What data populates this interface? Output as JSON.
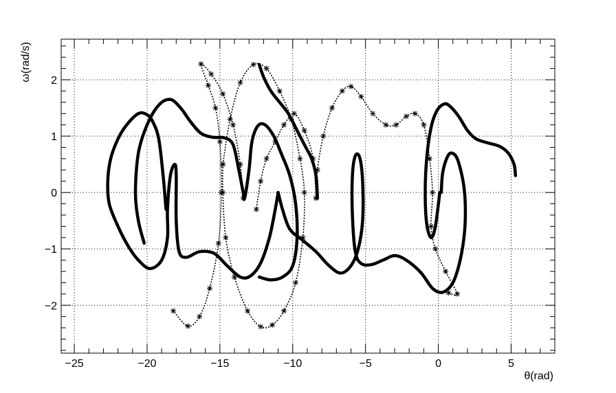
{
  "chart_data": {
    "type": "scatter",
    "title": "",
    "xlabel": "θ(rad)",
    "ylabel": "ω(rad/s)",
    "xlim": [
      -25.9,
      8.0
    ],
    "ylim": [
      -2.85,
      2.72
    ],
    "grid": true,
    "legend": "none",
    "marker": "asterisk",
    "marker_color": "#000000",
    "x_ticks": [
      {
        "value": -25,
        "label": "−25"
      },
      {
        "value": -20,
        "label": "−20"
      },
      {
        "value": -15,
        "label": "−15"
      },
      {
        "value": -10,
        "label": "−10"
      },
      {
        "value": -5,
        "label": "−5"
      },
      {
        "value": 0,
        "label": "0"
      },
      {
        "value": 5,
        "label": "5"
      }
    ],
    "y_ticks": [
      {
        "value": -2,
        "label": "−2"
      },
      {
        "value": -1,
        "label": "−1"
      },
      {
        "value": 0,
        "label": "0"
      },
      {
        "value": 1,
        "label": "1"
      },
      {
        "value": 2,
        "label": "2"
      }
    ],
    "series": [
      {
        "style": "dense",
        "points": [
          [
            5.3,
            0.3
          ],
          [
            5.2,
            0.5
          ],
          [
            4.8,
            0.7
          ],
          [
            4.2,
            0.82
          ],
          [
            3.4,
            0.88
          ],
          [
            2.6,
            0.95
          ],
          [
            2.0,
            1.1
          ],
          [
            1.4,
            1.35
          ],
          [
            0.8,
            1.53
          ],
          [
            0.4,
            1.57
          ],
          [
            -0.1,
            1.45
          ],
          [
            -0.5,
            1.15
          ],
          [
            -0.8,
            0.6
          ],
          [
            -0.9,
            0.0
          ],
          [
            -0.8,
            -0.55
          ],
          [
            -0.5,
            -0.8
          ],
          [
            -0.2,
            -0.6
          ],
          [
            0.1,
            0.0
          ]
        ]
      },
      {
        "style": "dense",
        "points": [
          [
            0.2,
            0.0
          ],
          [
            0.3,
            0.35
          ],
          [
            0.6,
            0.62
          ],
          [
            0.9,
            0.7
          ],
          [
            1.3,
            0.6
          ],
          [
            1.7,
            0.2
          ],
          [
            1.85,
            -0.2
          ],
          [
            1.8,
            -0.7
          ],
          [
            1.5,
            -1.2
          ],
          [
            1.0,
            -1.6
          ],
          [
            0.3,
            -1.77
          ],
          [
            -0.4,
            -1.7
          ],
          [
            -1.2,
            -1.42
          ],
          [
            -2.2,
            -1.2
          ],
          [
            -3.0,
            -1.12
          ],
          [
            -3.8,
            -1.2
          ],
          [
            -4.6,
            -1.28
          ],
          [
            -5.3,
            -1.26
          ],
          [
            -5.7,
            -1.05
          ],
          [
            -5.9,
            -0.4
          ],
          [
            -5.9,
            0.3
          ],
          [
            -5.7,
            0.65
          ],
          [
            -5.4,
            0.62
          ],
          [
            -5.2,
            0.2
          ],
          [
            -5.2,
            -0.5
          ],
          [
            -5.5,
            -1.0
          ],
          [
            -6.0,
            -1.3
          ],
          [
            -6.7,
            -1.43
          ],
          [
            -7.5,
            -1.3
          ],
          [
            -8.4,
            -1.05
          ],
          [
            -9.3,
            -0.85
          ],
          [
            -10.2,
            -0.65
          ],
          [
            -10.7,
            -0.3
          ],
          [
            -11.0,
            0.0
          ]
        ]
      },
      {
        "style": "dense",
        "points": [
          [
            -11.0,
            0.0
          ],
          [
            -11.2,
            -0.3
          ],
          [
            -11.6,
            -0.8
          ],
          [
            -12.2,
            -1.25
          ],
          [
            -12.9,
            -1.48
          ],
          [
            -13.6,
            -1.5
          ],
          [
            -14.5,
            -1.3
          ],
          [
            -15.4,
            -1.08
          ],
          [
            -16.4,
            -1.05
          ],
          [
            -17.3,
            -1.15
          ],
          [
            -17.8,
            -1.05
          ],
          [
            -18.0,
            -0.5
          ],
          [
            -18.0,
            0.3
          ],
          [
            -18.1,
            0.5
          ],
          [
            -18.4,
            0.3
          ],
          [
            -18.6,
            -0.3
          ],
          [
            -18.6,
            -0.8
          ],
          [
            -19.0,
            -1.2
          ],
          [
            -19.8,
            -1.35
          ],
          [
            -20.6,
            -1.2
          ],
          [
            -21.3,
            -0.95
          ],
          [
            -22.0,
            -0.6
          ],
          [
            -22.6,
            -0.2
          ],
          [
            -22.7,
            0.2
          ],
          [
            -22.5,
            0.6
          ],
          [
            -22.0,
            0.95
          ],
          [
            -21.4,
            1.2
          ],
          [
            -20.6,
            1.4
          ],
          [
            -20.0,
            1.38
          ],
          [
            -19.6,
            1.25
          ],
          [
            -19.2,
            0.95
          ],
          [
            -18.9,
            0.3
          ],
          [
            -18.7,
            -0.3
          ]
        ]
      },
      {
        "style": "dense",
        "points": [
          [
            -20.2,
            -0.9
          ],
          [
            -20.6,
            -0.5
          ],
          [
            -20.8,
            0.0
          ],
          [
            -20.6,
            0.7
          ],
          [
            -20.0,
            1.2
          ],
          [
            -19.2,
            1.55
          ],
          [
            -18.4,
            1.65
          ],
          [
            -17.7,
            1.5
          ],
          [
            -17.0,
            1.25
          ],
          [
            -16.3,
            1.05
          ],
          [
            -15.5,
            0.98
          ],
          [
            -14.7,
            0.97
          ],
          [
            -14.1,
            0.85
          ],
          [
            -13.7,
            0.4
          ],
          [
            -13.4,
            0.0
          ],
          [
            -13.3,
            -0.1
          ],
          [
            -13.0,
            0.4
          ],
          [
            -12.8,
            0.9
          ],
          [
            -12.4,
            1.18
          ],
          [
            -11.9,
            1.2
          ],
          [
            -11.3,
            1.0
          ],
          [
            -10.8,
            0.7
          ],
          [
            -10.2,
            0.3
          ],
          [
            -9.8,
            -0.2
          ],
          [
            -9.7,
            -0.8
          ],
          [
            -10.0,
            -1.3
          ],
          [
            -10.7,
            -1.5
          ],
          [
            -11.5,
            -1.55
          ],
          [
            -12.3,
            -1.5
          ]
        ]
      },
      {
        "style": "sparse",
        "points": [
          [
            -13.4,
            -0.1
          ],
          [
            -13.6,
            0.5
          ],
          [
            -14.1,
            1.2
          ],
          [
            -14.8,
            1.75
          ],
          [
            -15.6,
            2.1
          ],
          [
            -16.3,
            2.28
          ],
          [
            -15.8,
            1.9
          ],
          [
            -15.3,
            1.5
          ],
          [
            -15.0,
            0.9
          ],
          [
            -14.9,
            0.0
          ],
          [
            -15.1,
            -0.9
          ],
          [
            -15.7,
            -1.7
          ],
          [
            -16.4,
            -2.2
          ],
          [
            -17.2,
            -2.37
          ],
          [
            -18.2,
            -2.1
          ]
        ]
      },
      {
        "style": "sparse",
        "points": [
          [
            -14.8,
            0.5
          ],
          [
            -14.3,
            1.3
          ],
          [
            -13.6,
            1.95
          ],
          [
            -12.7,
            2.27
          ],
          [
            -11.8,
            2.2
          ],
          [
            -10.9,
            1.8
          ],
          [
            -10.1,
            1.3
          ],
          [
            -9.5,
            0.6
          ],
          [
            -9.2,
            0.0
          ],
          [
            -9.3,
            -0.8
          ],
          [
            -9.8,
            -1.6
          ],
          [
            -10.6,
            -2.1
          ],
          [
            -11.4,
            -2.35
          ],
          [
            -12.2,
            -2.38
          ],
          [
            -13.1,
            -2.1
          ],
          [
            -14.0,
            -1.5
          ],
          [
            -14.6,
            -0.8
          ],
          [
            -14.8,
            0.0
          ],
          [
            -14.8,
            0.5
          ]
        ]
      },
      {
        "style": "sparse",
        "points": [
          [
            -8.4,
            -0.1
          ],
          [
            -8.3,
            0.4
          ],
          [
            -7.9,
            1.0
          ],
          [
            -7.3,
            1.5
          ],
          [
            -6.6,
            1.8
          ],
          [
            -6.0,
            1.88
          ],
          [
            -5.3,
            1.7
          ],
          [
            -4.5,
            1.4
          ],
          [
            -3.6,
            1.2
          ],
          [
            -2.9,
            1.2
          ],
          [
            -2.2,
            1.35
          ],
          [
            -1.6,
            1.4
          ],
          [
            -1.0,
            1.2
          ],
          [
            -0.6,
            0.6
          ],
          [
            -0.4,
            0.0
          ],
          [
            -0.5,
            -0.6
          ],
          [
            -0.2,
            -1.0
          ],
          [
            0.5,
            -1.4
          ],
          [
            1.3,
            -1.8
          ],
          [
            0.7,
            -1.78
          ]
        ]
      },
      {
        "style": "sparse",
        "points": [
          [
            -8.4,
            -0.1
          ],
          [
            -8.6,
            0.6
          ],
          [
            -9.2,
            1.1
          ],
          [
            -9.9,
            1.4
          ],
          [
            -10.6,
            1.2
          ],
          [
            -11.2,
            0.9
          ],
          [
            -11.8,
            0.6
          ],
          [
            -12.2,
            0.2
          ],
          [
            -12.5,
            -0.3
          ]
        ]
      },
      {
        "style": "dense",
        "points": [
          [
            -8.3,
            -0.1
          ],
          [
            -8.4,
            0.3
          ],
          [
            -8.7,
            0.6
          ],
          [
            -9.1,
            0.8
          ],
          [
            -9.7,
            1.1
          ],
          [
            -10.3,
            1.4
          ],
          [
            -10.9,
            1.6
          ],
          [
            -11.5,
            1.8
          ],
          [
            -12.0,
            2.05
          ],
          [
            -12.3,
            2.27
          ]
        ]
      }
    ]
  }
}
